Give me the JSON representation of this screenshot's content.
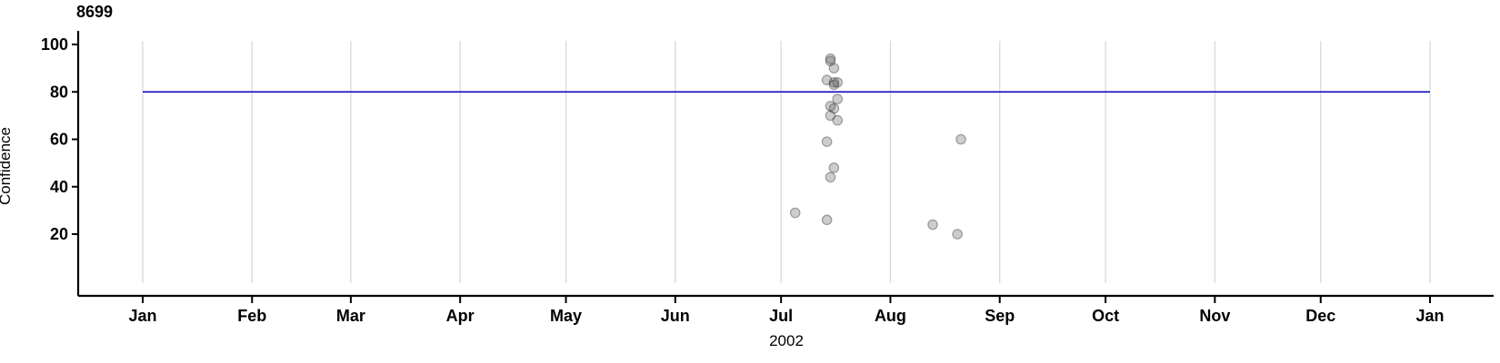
{
  "chart_data": {
    "type": "scatter",
    "title": "8699",
    "ylabel": "Confidence",
    "xlabel": "2002",
    "x_axis": {
      "start": "2002-01-01",
      "end": "2003-01-01",
      "tick_labels": [
        "Jan",
        "Feb",
        "Mar",
        "Apr",
        "May",
        "Jun",
        "Jul",
        "Aug",
        "Sep",
        "Oct",
        "Nov",
        "Dec",
        "Jan"
      ],
      "grid": "vertical line at each month start"
    },
    "y_axis": {
      "ticks": [
        20,
        40,
        60,
        80,
        100
      ],
      "range_shown": [
        0,
        105
      ]
    },
    "legend": "none",
    "reference_line": {
      "y": 80,
      "color": "#0000b4",
      "orientation": "horizontal",
      "span": "Jan to Jan"
    },
    "point_style": {
      "shape": "circle",
      "radius_px": 5.2,
      "fill": "rgba(90,90,90,0.30)",
      "stroke": "rgba(60,60,60,0.45)"
    },
    "grid_color": "#d9d9d9",
    "axis_color": "#000000",
    "points": [
      {
        "date": "2002-07-15",
        "confidence": 94
      },
      {
        "date": "2002-07-15",
        "confidence": 93
      },
      {
        "date": "2002-07-16",
        "confidence": 90
      },
      {
        "date": "2002-07-14",
        "confidence": 85
      },
      {
        "date": "2002-07-16",
        "confidence": 84
      },
      {
        "date": "2002-07-16",
        "confidence": 83
      },
      {
        "date": "2002-07-17",
        "confidence": 84
      },
      {
        "date": "2002-07-17",
        "confidence": 77
      },
      {
        "date": "2002-07-15",
        "confidence": 74
      },
      {
        "date": "2002-07-16",
        "confidence": 73
      },
      {
        "date": "2002-07-15",
        "confidence": 70
      },
      {
        "date": "2002-07-17",
        "confidence": 68
      },
      {
        "date": "2002-07-14",
        "confidence": 59
      },
      {
        "date": "2002-07-16",
        "confidence": 48
      },
      {
        "date": "2002-07-15",
        "confidence": 44
      },
      {
        "date": "2002-07-05",
        "confidence": 29
      },
      {
        "date": "2002-07-14",
        "confidence": 26
      },
      {
        "date": "2002-08-21",
        "confidence": 60
      },
      {
        "date": "2002-08-13",
        "confidence": 24
      },
      {
        "date": "2002-08-20",
        "confidence": 20
      }
    ]
  }
}
